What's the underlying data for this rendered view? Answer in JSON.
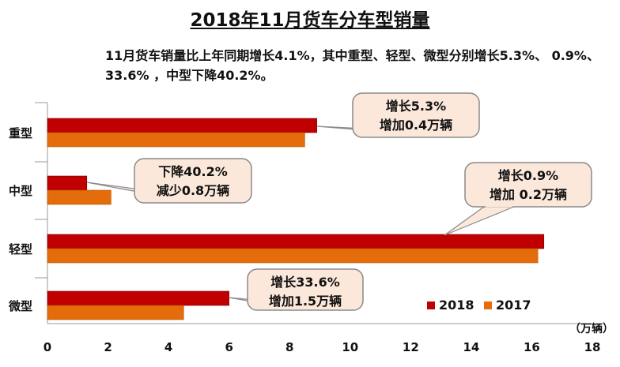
{
  "header": {
    "title": "2018年11月货车分车型销量",
    "subtitle": "11月货车销量比上年同期增长4.1%，其中重型、轻型、微型分别增长5.3%、 0.9%、 33.6% ，中型下降40.2%。"
  },
  "chart_data": {
    "type": "bar",
    "orientation": "horizontal",
    "title": "2018年11月货车分车型销量",
    "categories": [
      "重型",
      "中型",
      "轻型",
      "微型"
    ],
    "series": [
      {
        "name": "2018",
        "values": [
          8.9,
          1.3,
          16.4,
          6.0
        ],
        "color": "#c00000"
      },
      {
        "name": "2017",
        "values": [
          8.5,
          2.1,
          16.2,
          4.5
        ],
        "color": "#e46c0a"
      }
    ],
    "xlim": [
      0,
      18
    ],
    "xticks": [
      0,
      2,
      4,
      6,
      8,
      10,
      12,
      14,
      16,
      18
    ],
    "unit_label": "（万辆）",
    "legend_position": "bottom-right",
    "grid": false,
    "callouts": [
      {
        "category": "重型",
        "lines": [
          "增长5.3%",
          "增加0.4万辆"
        ]
      },
      {
        "category": "中型",
        "lines": [
          "下降40.2%",
          "减少0.8万辆"
        ]
      },
      {
        "category": "轻型",
        "lines": [
          "增长0.9%",
          "增加 0.2万辆"
        ]
      },
      {
        "category": "微型",
        "lines": [
          "增长33.6%",
          "增加1.5万辆"
        ]
      }
    ],
    "callout_fill": "#fbe8da",
    "callout_stroke": "#8a8a8a"
  }
}
